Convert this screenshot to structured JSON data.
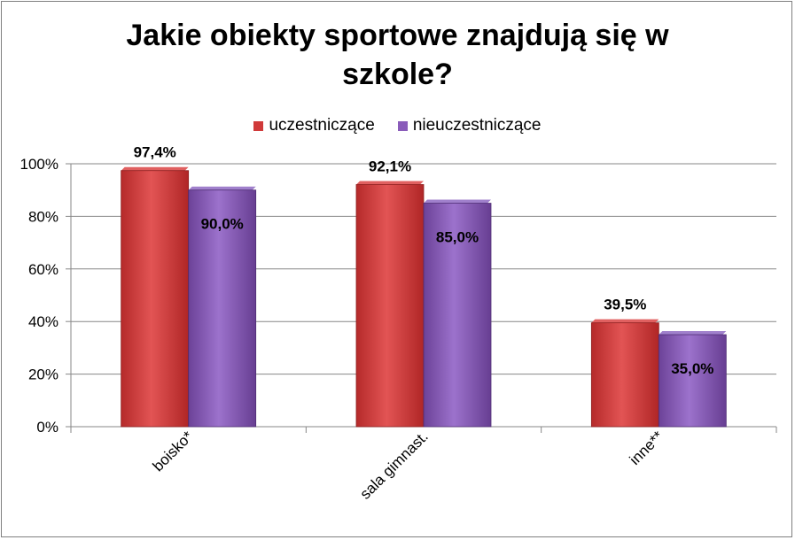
{
  "title_lines": [
    "Jakie obiekty sportowe znajdują się w",
    "szkole?"
  ],
  "colors": {
    "uczestniczace": "#d03a3a",
    "nieuczestniczace": "#8a5cba"
  },
  "chart_data": {
    "type": "bar",
    "title": "Jakie obiekty sportowe znajdują się w szkole?",
    "categories": [
      "boisko*",
      "sala gimnast.",
      "inne**"
    ],
    "series": [
      {
        "name": "uczestniczące",
        "values": [
          97.4,
          92.1,
          39.5
        ],
        "labels": [
          "97,4%",
          "92,1%",
          "39,5%"
        ]
      },
      {
        "name": "nieuczestniczące",
        "values": [
          90.0,
          85.0,
          35.0
        ],
        "labels": [
          "90,0%",
          "85,0%",
          "35,0%"
        ]
      }
    ],
    "ylim": [
      0,
      100
    ],
    "yticks": [
      "0%",
      "20%",
      "40%",
      "60%",
      "80%",
      "100%"
    ],
    "grid": true,
    "legend_position": "top"
  }
}
